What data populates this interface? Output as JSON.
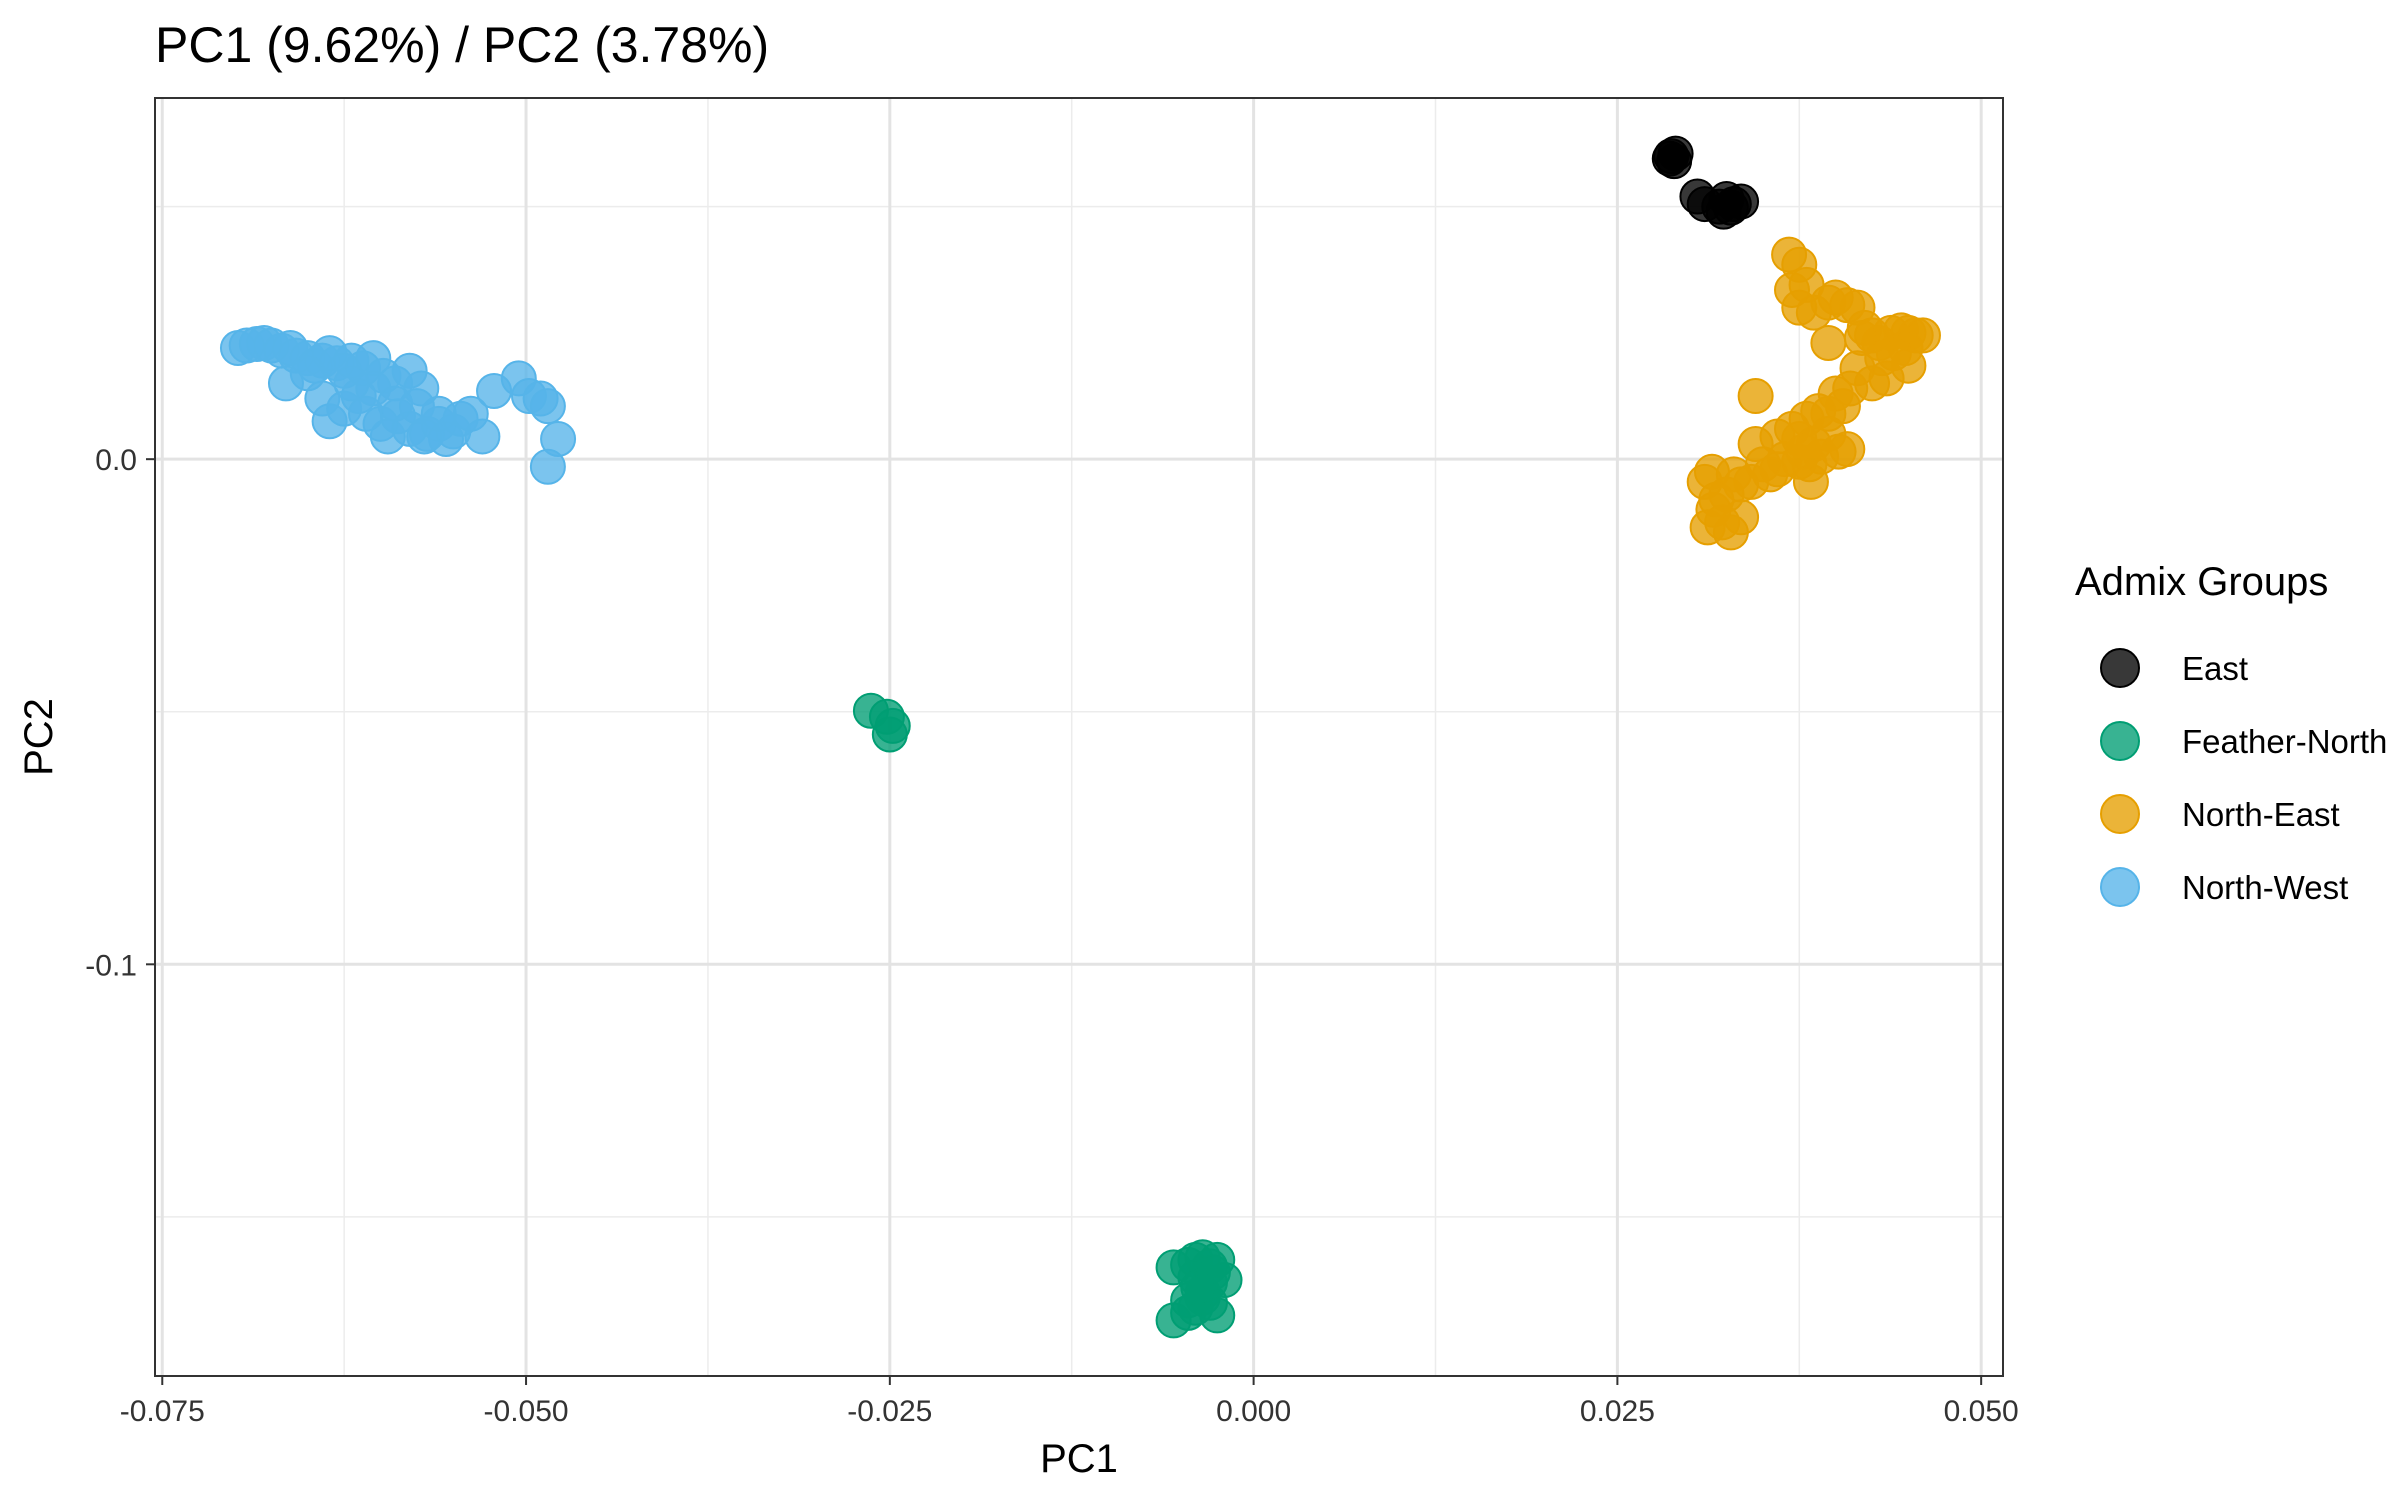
{
  "chart_data": {
    "type": "scatter",
    "title": "PC1 (9.62%) / PC2 (3.78%)",
    "xlabel": "PC1",
    "ylabel": "PC2",
    "xlim": [
      -0.0755,
      0.0515
    ],
    "ylim": [
      -0.1815,
      0.0715
    ],
    "x_ticks": [
      -0.075,
      -0.05,
      -0.025,
      0.0,
      0.025,
      0.05
    ],
    "x_tick_labels": [
      "-0.075",
      "-0.050",
      "-0.025",
      "0.000",
      "0.025",
      "0.050"
    ],
    "y_ticks": [
      -0.1,
      0.0
    ],
    "y_tick_labels": [
      "-0.1",
      "0.0"
    ],
    "grid": true,
    "legend": {
      "title": "Admix Groups",
      "placement": "right"
    },
    "series": [
      {
        "name": "East",
        "color": "#000000",
        "points": [
          [
            0.0287,
            0.06
          ],
          [
            0.029,
            0.0605
          ],
          [
            0.0286,
            0.0595
          ],
          [
            0.0289,
            0.059
          ],
          [
            0.0305,
            0.052
          ],
          [
            0.031,
            0.0505
          ],
          [
            0.032,
            0.05
          ],
          [
            0.0323,
            0.049
          ],
          [
            0.0325,
            0.0515
          ],
          [
            0.033,
            0.0505
          ],
          [
            0.0335,
            0.051
          ],
          [
            0.0328,
            0.0498
          ]
        ]
      },
      {
        "name": "Feather-North",
        "color": "#009E73",
        "points": [
          [
            -0.0263,
            -0.0498
          ],
          [
            -0.0252,
            -0.051
          ],
          [
            -0.0248,
            -0.0528
          ],
          [
            -0.025,
            -0.0545
          ],
          [
            -0.0045,
            -0.1595
          ],
          [
            -0.004,
            -0.1585
          ],
          [
            -0.0035,
            -0.158
          ],
          [
            -0.003,
            -0.1598
          ],
          [
            -0.0025,
            -0.1585
          ],
          [
            -0.004,
            -0.162
          ],
          [
            -0.003,
            -0.163
          ],
          [
            -0.002,
            -0.1625
          ],
          [
            -0.0035,
            -0.165
          ],
          [
            -0.0045,
            -0.1665
          ],
          [
            -0.003,
            -0.167
          ],
          [
            -0.004,
            -0.168
          ],
          [
            -0.0055,
            -0.16
          ],
          [
            -0.0055,
            -0.1705
          ],
          [
            -0.0045,
            -0.169
          ],
          [
            -0.0035,
            -0.166
          ],
          [
            -0.0025,
            -0.1695
          ],
          [
            -0.0038,
            -0.164
          ],
          [
            -0.0028,
            -0.161
          ]
        ]
      },
      {
        "name": "North-East",
        "color": "#E69F00",
        "points": [
          [
            0.0368,
            0.0405
          ],
          [
            0.0375,
            0.0385
          ],
          [
            0.037,
            0.0335
          ],
          [
            0.038,
            0.0345
          ],
          [
            0.0375,
            0.03
          ],
          [
            0.0385,
            0.029
          ],
          [
            0.0395,
            0.031
          ],
          [
            0.04,
            0.032
          ],
          [
            0.0408,
            0.0305
          ],
          [
            0.0415,
            0.03
          ],
          [
            0.042,
            0.026
          ],
          [
            0.0418,
            0.024
          ],
          [
            0.0425,
            0.0245
          ],
          [
            0.043,
            0.023
          ],
          [
            0.0438,
            0.025
          ],
          [
            0.0445,
            0.0255
          ],
          [
            0.045,
            0.025
          ],
          [
            0.0455,
            0.0245
          ],
          [
            0.046,
            0.0245
          ],
          [
            0.0448,
            0.022
          ],
          [
            0.044,
            0.021
          ],
          [
            0.045,
            0.0185
          ],
          [
            0.0432,
            0.02
          ],
          [
            0.0435,
            0.016
          ],
          [
            0.0425,
            0.015
          ],
          [
            0.0415,
            0.018
          ],
          [
            0.0395,
            0.023
          ],
          [
            0.041,
            0.014
          ],
          [
            0.04,
            0.013
          ],
          [
            0.0405,
            0.0105
          ],
          [
            0.0395,
            0.009
          ],
          [
            0.0388,
            0.0095
          ],
          [
            0.038,
            0.008
          ],
          [
            0.037,
            0.006
          ],
          [
            0.0375,
            0.004
          ],
          [
            0.0385,
            0.003
          ],
          [
            0.0395,
            0.005
          ],
          [
            0.0408,
            0.002
          ],
          [
            0.0402,
            0.0015
          ],
          [
            0.039,
            0.0005
          ],
          [
            0.0382,
            -0.001
          ],
          [
            0.0375,
            -0.0005
          ],
          [
            0.0365,
            0.0
          ],
          [
            0.036,
            -0.002
          ],
          [
            0.0355,
            -0.003
          ],
          [
            0.035,
            -0.001
          ],
          [
            0.0345,
            0.003
          ],
          [
            0.0342,
            -0.0045
          ],
          [
            0.0335,
            -0.005
          ],
          [
            0.033,
            -0.003
          ],
          [
            0.0325,
            -0.007
          ],
          [
            0.0318,
            -0.008
          ],
          [
            0.0315,
            -0.0025
          ],
          [
            0.031,
            -0.0045
          ],
          [
            0.0316,
            -0.01
          ],
          [
            0.0322,
            -0.0125
          ],
          [
            0.0328,
            -0.0145
          ],
          [
            0.0335,
            -0.0115
          ],
          [
            0.0312,
            -0.0135
          ],
          [
            0.0383,
            -0.0045
          ],
          [
            0.0345,
            0.0125
          ],
          [
            0.036,
            0.0045
          ],
          [
            0.0378,
            0.0015
          ]
        ]
      },
      {
        "name": "North-West",
        "color": "#56B4E9",
        "points": [
          [
            -0.0698,
            0.022
          ],
          [
            -0.0692,
            0.0225
          ],
          [
            -0.0685,
            0.0228
          ],
          [
            -0.068,
            0.023
          ],
          [
            -0.0675,
            0.0225
          ],
          [
            -0.0668,
            0.0215
          ],
          [
            -0.0662,
            0.022
          ],
          [
            -0.0658,
            0.0205
          ],
          [
            -0.065,
            0.02
          ],
          [
            -0.0645,
            0.0185
          ],
          [
            -0.064,
            0.0195
          ],
          [
            -0.0635,
            0.021
          ],
          [
            -0.063,
            0.019
          ],
          [
            -0.0625,
            0.0175
          ],
          [
            -0.062,
            0.0195
          ],
          [
            -0.0612,
            0.018
          ],
          [
            -0.0605,
            0.02
          ],
          [
            -0.0598,
            0.0165
          ],
          [
            -0.059,
            0.015
          ],
          [
            -0.058,
            0.0175
          ],
          [
            -0.0572,
            0.014
          ],
          [
            -0.0665,
            0.015
          ],
          [
            -0.064,
            0.012
          ],
          [
            -0.0635,
            0.0075
          ],
          [
            -0.0625,
            0.01
          ],
          [
            -0.0615,
            0.0125
          ],
          [
            -0.061,
            0.009
          ],
          [
            -0.06,
            0.007
          ],
          [
            -0.0595,
            0.0045
          ],
          [
            -0.0588,
            0.0085
          ],
          [
            -0.058,
            0.006
          ],
          [
            -0.0575,
            0.0105
          ],
          [
            -0.0568,
            0.005
          ],
          [
            -0.056,
            0.007
          ],
          [
            -0.0555,
            0.004
          ],
          [
            -0.055,
            0.0055
          ],
          [
            -0.0545,
            0.008
          ],
          [
            -0.0538,
            0.009
          ],
          [
            -0.053,
            0.0045
          ],
          [
            -0.0522,
            0.0135
          ],
          [
            -0.0505,
            0.016
          ],
          [
            -0.0498,
            0.0125
          ],
          [
            -0.049,
            0.012
          ],
          [
            -0.0485,
            0.0105
          ],
          [
            -0.0478,
            0.004
          ],
          [
            -0.0485,
            -0.0015
          ],
          [
            -0.057,
            0.0045
          ],
          [
            -0.0605,
            0.014
          ],
          [
            -0.059,
            0.011
          ],
          [
            -0.062,
            0.015
          ],
          [
            -0.065,
            0.017
          ],
          [
            -0.056,
            0.009
          ]
        ]
      }
    ]
  }
}
